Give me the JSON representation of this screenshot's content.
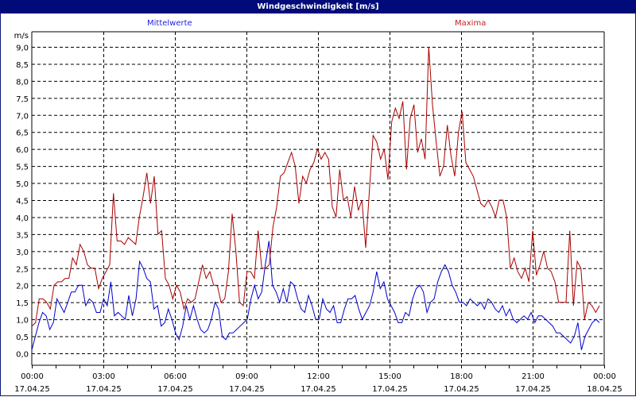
{
  "window": {
    "title": "Windgeschwindigkeit [m/s]"
  },
  "legend": {
    "mean": "Mittelwerte",
    "max": "Maxima"
  },
  "colors": {
    "title_bar": "#000a78",
    "mean": "#0000cc",
    "max": "#aa0000",
    "grid": "#000000"
  },
  "chart_data": {
    "type": "line",
    "title": "Windgeschwindigkeit [m/s]",
    "ylabel": "m/s",
    "xlabel": "",
    "ylim": [
      -0.3,
      9.5
    ],
    "yticks": [
      "0,0",
      "0,5",
      "1,0",
      "1,5",
      "2,0",
      "2,5",
      "3,0",
      "3,5",
      "4,0",
      "4,5",
      "5,0",
      "5,5",
      "6,0",
      "6,5",
      "7,0",
      "7,5",
      "8,0",
      "8,5",
      "9,0"
    ],
    "xticks": [
      {
        "time": "00:00",
        "date": "17.04.25"
      },
      {
        "time": "03:00",
        "date": "17.04.25"
      },
      {
        "time": "06:00",
        "date": "17.04.25"
      },
      {
        "time": "09:00",
        "date": "17.04.25"
      },
      {
        "time": "12:00",
        "date": "17.04.25"
      },
      {
        "time": "15:00",
        "date": "17.04.25"
      },
      {
        "time": "18:00",
        "date": "17.04.25"
      },
      {
        "time": "21:00",
        "date": "17.04.25"
      },
      {
        "time": "00:00",
        "date": "18.04.25"
      }
    ],
    "interval_minutes": 10,
    "grid": true,
    "series": [
      {
        "name": "Mittelwerte",
        "values": [
          0.1,
          0.5,
          0.9,
          1.2,
          1.1,
          0.7,
          0.9,
          1.6,
          1.4,
          1.2,
          1.5,
          1.8,
          1.8,
          2.0,
          2.0,
          1.4,
          1.6,
          1.5,
          1.2,
          1.2,
          1.6,
          1.4,
          2.1,
          1.1,
          1.2,
          1.1,
          1.0,
          1.7,
          1.1,
          1.6,
          2.7,
          2.5,
          2.2,
          2.1,
          1.3,
          1.4,
          0.8,
          0.9,
          1.3,
          1.0,
          0.6,
          0.4,
          0.8,
          1.4,
          1.0,
          1.4,
          1.0,
          0.7,
          0.6,
          0.7,
          1.0,
          1.5,
          1.3,
          0.5,
          0.4,
          0.6,
          0.6,
          0.7,
          0.8,
          0.9,
          1.0,
          1.6,
          2.0,
          1.6,
          1.8,
          2.6,
          3.3,
          2.0,
          1.8,
          1.5,
          1.9,
          1.5,
          2.1,
          2.0,
          1.6,
          1.3,
          1.2,
          1.7,
          1.4,
          1.0,
          1.0,
          1.6,
          1.3,
          1.2,
          1.4,
          0.9,
          0.9,
          1.3,
          1.6,
          1.6,
          1.7,
          1.3,
          1.0,
          1.2,
          1.4,
          1.8,
          2.4,
          1.9,
          2.1,
          1.6,
          1.4,
          1.2,
          0.9,
          0.9,
          1.2,
          1.1,
          1.6,
          1.9,
          2.0,
          1.8,
          1.2,
          1.5,
          1.6,
          2.1,
          2.4,
          2.6,
          2.4,
          2.0,
          1.8,
          1.5,
          1.5,
          1.4,
          1.6,
          1.5,
          1.4,
          1.5,
          1.3,
          1.6,
          1.5,
          1.3,
          1.2,
          1.4,
          1.1,
          1.3,
          1.0,
          0.9,
          1.0,
          1.1,
          1.0,
          1.2,
          0.9,
          1.1,
          1.1,
          1.0,
          0.9,
          0.8,
          0.6,
          0.6,
          0.5,
          0.4,
          0.3,
          0.5,
          0.9,
          0.1,
          0.5,
          0.7,
          0.9,
          1.0,
          0.9
        ]
      },
      {
        "name": "Maxima",
        "values": [
          0.8,
          0.9,
          1.6,
          1.6,
          1.5,
          1.3,
          2.0,
          2.1,
          2.1,
          2.2,
          2.2,
          2.8,
          2.6,
          3.2,
          3.0,
          2.6,
          2.5,
          2.5,
          1.9,
          2.2,
          2.4,
          2.6,
          4.7,
          3.3,
          3.3,
          3.2,
          3.4,
          3.3,
          3.2,
          4.0,
          4.6,
          5.3,
          4.4,
          5.2,
          3.5,
          3.6,
          2.2,
          2.0,
          1.6,
          2.0,
          1.8,
          1.3,
          1.6,
          1.5,
          1.6,
          2.1,
          2.6,
          2.2,
          2.4,
          2.0,
          2.0,
          1.5,
          1.6,
          2.4,
          4.1,
          3.0,
          1.5,
          1.4,
          2.4,
          2.4,
          2.2,
          3.6,
          2.5,
          2.5,
          2.6,
          3.7,
          4.3,
          5.2,
          5.3,
          5.6,
          5.9,
          5.5,
          4.4,
          5.2,
          5.0,
          5.4,
          5.6,
          6.0,
          5.7,
          5.9,
          5.7,
          4.3,
          4.0,
          5.4,
          4.5,
          4.6,
          4.0,
          4.9,
          4.2,
          4.5,
          3.1,
          4.8,
          6.4,
          6.2,
          5.7,
          6.0,
          5.1,
          6.8,
          7.2,
          6.9,
          7.4,
          5.4,
          6.9,
          7.3,
          5.9,
          6.3,
          5.7,
          9.0,
          7.3,
          6.2,
          5.2,
          5.5,
          6.7,
          5.8,
          5.2,
          6.5,
          7.1,
          5.6,
          5.4,
          5.2,
          4.8,
          4.4,
          4.3,
          4.5,
          4.3,
          4.0,
          4.5,
          4.5,
          4.0,
          2.5,
          2.8,
          2.4,
          2.2,
          2.5,
          2.1,
          3.6,
          2.3,
          2.6,
          3.0,
          2.5,
          2.4,
          2.1,
          1.5,
          1.5,
          1.5,
          3.6,
          1.4,
          2.7,
          2.5,
          1.0,
          1.5,
          1.4,
          1.2,
          1.4
        ]
      }
    ]
  }
}
